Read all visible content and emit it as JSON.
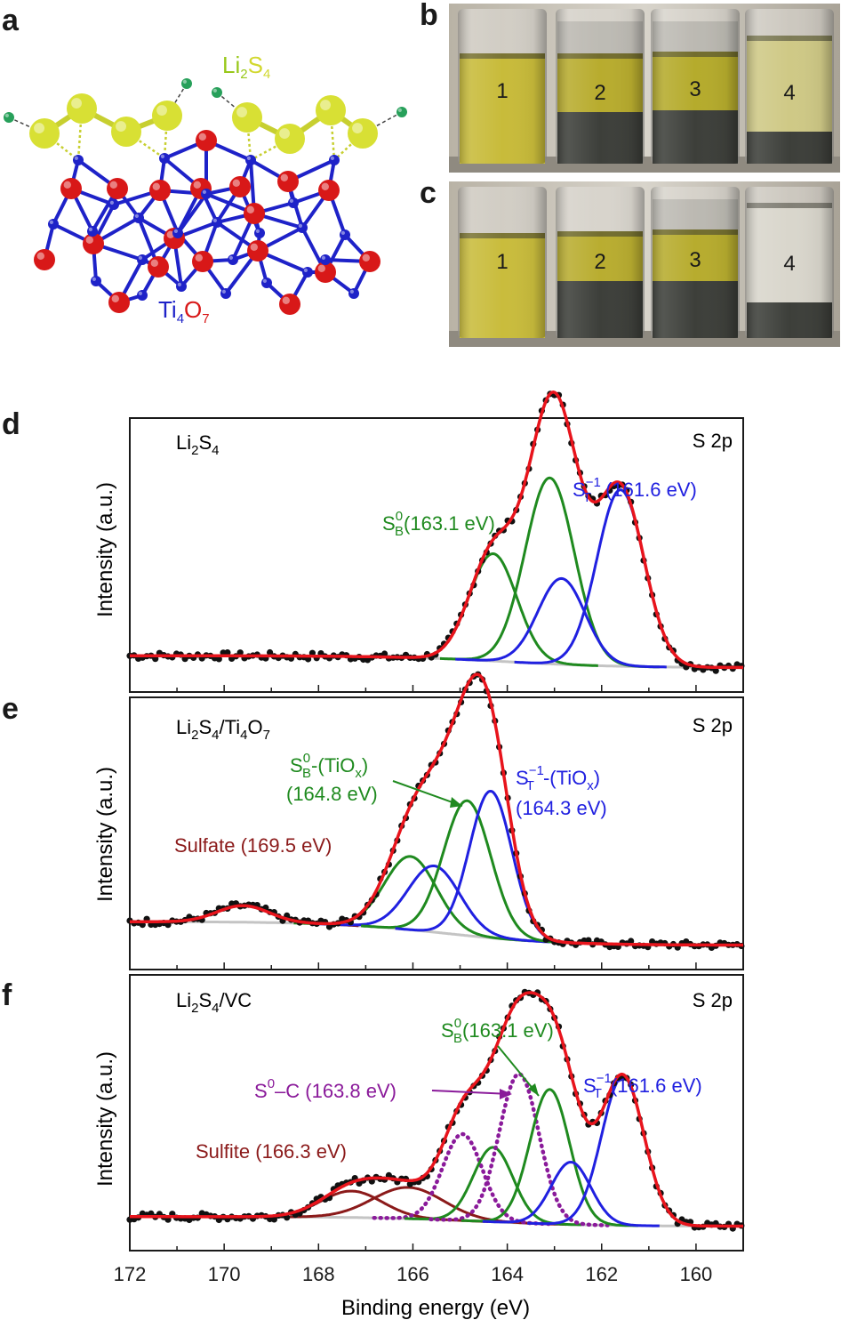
{
  "panel_labels": [
    "a",
    "b",
    "c",
    "d",
    "e",
    "f"
  ],
  "panel_a": {
    "molecule_label": [
      "Li",
      "2",
      "S",
      "4"
    ],
    "substrate_label": [
      "Ti",
      "4",
      "O",
      "7"
    ],
    "colors": {
      "sulfur": "#d8e034",
      "lithium": "#27a05a",
      "titanium": "#1e22c8",
      "oxygen": "#d81818",
      "li2s4_text": "#98c81a"
    }
  },
  "panel_b": {
    "vial_labels": [
      "1",
      "2",
      "3",
      "4"
    ]
  },
  "panel_c": {
    "vial_labels": [
      "1",
      "2",
      "3",
      "4"
    ]
  },
  "xps_common": {
    "xlabel": "Binding energy (eV)",
    "ylabel": "Intensity (a.u.)",
    "region": "S 2p",
    "x_ticks": [
      "172",
      "170",
      "168",
      "166",
      "164",
      "162",
      "160"
    ],
    "xlim": [
      172,
      159
    ],
    "colors": {
      "fit": "#e8141c",
      "data": "#111111",
      "background": "#c4c4c4",
      "sb": "#1f8a1f",
      "st": "#2020e0",
      "sulfate": "#8b1a1a",
      "s0c": "#8a1a9a"
    }
  },
  "chart_data": [
    {
      "type": "line",
      "panel": "d",
      "sample": [
        "Li",
        "2",
        "S",
        "4"
      ],
      "xlim": [
        172,
        159
      ],
      "annotations": [
        {
          "parts": [
            "S",
            "B",
            "0",
            "(163.1 eV)"
          ],
          "color": "#1f8a1f"
        },
        {
          "parts": [
            "S",
            "T",
            "−1",
            " (161.6 eV)"
          ],
          "color": "#2020e0"
        }
      ],
      "components": [
        {
          "center": 164.3,
          "height": 0.45,
          "width": 0.5,
          "color": "#1f8a1f"
        },
        {
          "center": 163.1,
          "height": 0.78,
          "width": 0.52,
          "color": "#1f8a1f"
        },
        {
          "center": 162.85,
          "height": 0.36,
          "width": 0.5,
          "color": "#2020e0"
        },
        {
          "center": 161.6,
          "height": 0.74,
          "width": 0.5,
          "color": "#2020e0"
        }
      ],
      "background": {
        "low": 0.02,
        "high": 0.07,
        "step_center": 164.0
      }
    },
    {
      "type": "line",
      "panel": "e",
      "sample": [
        "Li",
        "2",
        "S",
        "4",
        "/Ti",
        "4",
        "O",
        "7"
      ],
      "xlim": [
        172,
        159
      ],
      "annotations": [
        {
          "parts": [
            "S",
            "B",
            "0",
            "-(TiO",
            "x",
            ")"
          ],
          "color": "#1f8a1f"
        },
        {
          "parts": [
            "(164.8 eV)"
          ],
          "color": "#1f8a1f"
        },
        {
          "parts": [
            "S",
            "T",
            "−1",
            "-(TiO",
            "x",
            ")"
          ],
          "color": "#2020e0"
        },
        {
          "parts": [
            "(164.3 eV)"
          ],
          "color": "#2020e0"
        },
        {
          "parts": [
            "Sulfate (169.5 eV)"
          ],
          "color": "#8b1a1a"
        }
      ],
      "components": [
        {
          "center": 169.6,
          "height": 0.07,
          "width": 0.55,
          "color": "#8b1a1a"
        },
        {
          "center": 166.05,
          "height": 0.31,
          "width": 0.55,
          "color": "#1f8a1f"
        },
        {
          "center": 165.55,
          "height": 0.28,
          "width": 0.55,
          "color": "#2020e0"
        },
        {
          "center": 164.85,
          "height": 0.57,
          "width": 0.5,
          "color": "#1f8a1f"
        },
        {
          "center": 164.35,
          "height": 0.62,
          "width": 0.45,
          "color": "#2020e0"
        }
      ],
      "background": {
        "low": 0.02,
        "high": 0.12,
        "step_center": 165.3
      }
    },
    {
      "type": "line",
      "panel": "f",
      "sample": [
        "Li",
        "2",
        "S",
        "4",
        "/VC"
      ],
      "xlim": [
        172,
        159
      ],
      "annotations": [
        {
          "parts": [
            "S",
            "B",
            "0",
            "(163.1 eV)"
          ],
          "color": "#1f8a1f"
        },
        {
          "parts": [
            "S",
            "",
            "0",
            "–C (163.8 eV)"
          ],
          "color": "#8a1a9a"
        },
        {
          "parts": [
            "S",
            "T",
            "−1",
            "(161.6 eV)"
          ],
          "color": "#2020e0"
        },
        {
          "parts": [
            "Sulfite (166.3 eV)"
          ],
          "color": "#8b1a1a"
        }
      ],
      "components": [
        {
          "center": 167.3,
          "height": 0.11,
          "width": 0.65,
          "color": "#8b1a1a"
        },
        {
          "center": 166.1,
          "height": 0.13,
          "width": 0.75,
          "color": "#8b1a1a"
        },
        {
          "center": 164.95,
          "height": 0.36,
          "width": 0.42,
          "color": "#8a1a9a",
          "dotted": true
        },
        {
          "center": 164.3,
          "height": 0.31,
          "width": 0.42,
          "color": "#1f8a1f"
        },
        {
          "center": 163.75,
          "height": 0.62,
          "width": 0.42,
          "color": "#8a1a9a",
          "dotted": true
        },
        {
          "center": 163.1,
          "height": 0.56,
          "width": 0.42,
          "color": "#1f8a1f"
        },
        {
          "center": 162.65,
          "height": 0.26,
          "width": 0.42,
          "color": "#2020e0"
        },
        {
          "center": 161.55,
          "height": 0.62,
          "width": 0.45,
          "color": "#2020e0"
        }
      ],
      "background": {
        "low": 0.02,
        "high": 0.06,
        "step_center": 164.5
      }
    }
  ]
}
